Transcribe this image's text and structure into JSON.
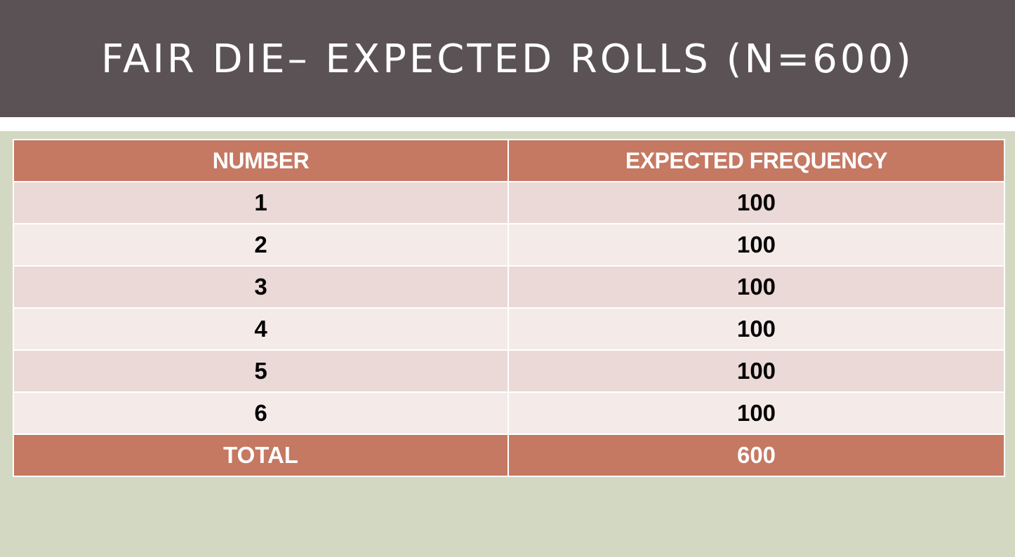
{
  "slide": {
    "title": "FAIR DIE– EXPECTED ROLLS (N=600)"
  },
  "table": {
    "headers": [
      "NUMBER",
      "EXPECTED FREQUENCY"
    ],
    "rows": [
      [
        "1",
        "100"
      ],
      [
        "2",
        "100"
      ],
      [
        "3",
        "100"
      ],
      [
        "4",
        "100"
      ],
      [
        "5",
        "100"
      ],
      [
        "6",
        "100"
      ]
    ],
    "total": [
      "TOTAL",
      "600"
    ]
  },
  "colors": {
    "title_bar": "#5b5256",
    "slide_background": "#d3d8c3",
    "header_fill": "#c57862",
    "row_band_dark": "#ead9d6",
    "row_band_light": "#f4ebe9"
  }
}
